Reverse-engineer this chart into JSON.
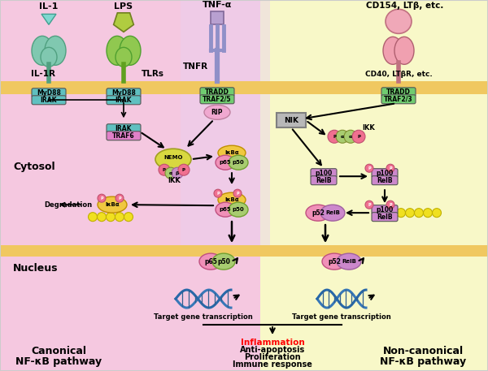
{
  "bg_left_color": "#f5c8e0",
  "bg_right_color": "#f8f8c8",
  "bg_tnfr_color": "#e8d0f0",
  "membrane_color": "#f0c860",
  "border_color": "#d0a030",
  "cytosol_label": "Cytosol",
  "nucleus_label": "Nucleus",
  "canonical_label": "Canonical\nNF-κB pathway",
  "noncanonical_label": "Non-canonical\nNF-κB pathway",
  "inflammation_text": "Inflammation",
  "other_effects": [
    "Anti-apoptosis",
    "Proliferation",
    "Immune response"
  ],
  "myd88_color": "#60c0c0",
  "irak_color": "#60c0c0",
  "tradd_color": "#70cc70",
  "traf_color": "#70cc70",
  "nemo_color": "#d8d840",
  "ikb_color": "#f0c840",
  "p65_color": "#f090b8",
  "p50_color": "#a8cc70",
  "p100_color": "#cc88cc",
  "relb_color": "#cc88cc",
  "p52_color": "#f090b8",
  "nik_color": "#b8b8b8",
  "rip_color": "#f0a8d0",
  "p_circle_color": "#f07090",
  "alpha_color": "#a8cc70",
  "beta_color": "#c890c8",
  "ub_color": "#f0e020",
  "il1r_color": "#80c8b0",
  "tlrs_color": "#90c850",
  "tnfr_color": "#9090c8",
  "cd40_color": "#f0a0b0",
  "il1_ligand_color": "#80d8d0",
  "lps_ligand_color": "#b0cc40",
  "tnfa_ligand_color": "#b8a0d0",
  "cd154_ligand_color": "#f0a8b8",
  "dna_color1": "#3878b8",
  "dna_color2": "#2868a8",
  "arrow_color": "black"
}
